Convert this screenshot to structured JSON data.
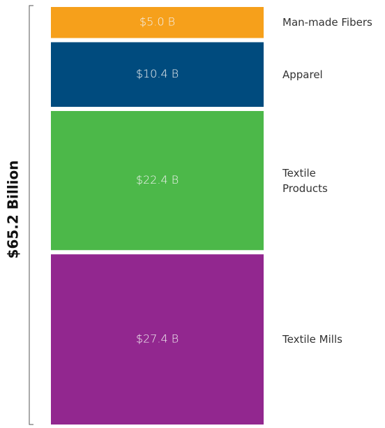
{
  "chart_data": {
    "type": "bar",
    "stacked": true,
    "total_label": "$65.2 Billion",
    "categories": [
      "Man-made Fibers",
      "Apparel",
      "Textile\nProducts",
      "Textile Mills"
    ],
    "values": [
      5.0,
      10.4,
      22.4,
      27.4
    ],
    "value_labels": [
      "$5.0 B",
      "$10.4 B",
      "$22.4 B",
      "$27.4 B"
    ],
    "colors": [
      "#f6a01b",
      "#004b7e",
      "#4cb849",
      "#92278f"
    ]
  }
}
